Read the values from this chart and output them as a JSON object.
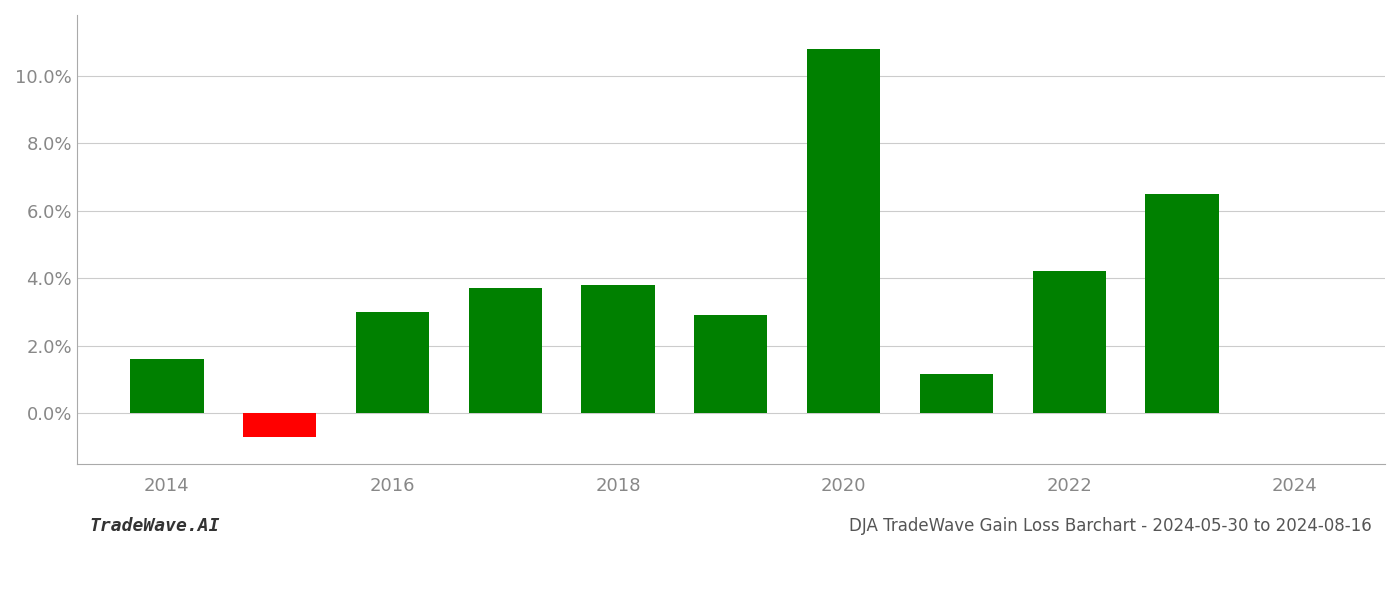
{
  "years": [
    2014,
    2015,
    2016,
    2017,
    2018,
    2019,
    2020,
    2021,
    2022,
    2023
  ],
  "values": [
    1.6,
    -0.7,
    3.0,
    3.7,
    3.8,
    2.9,
    10.8,
    1.15,
    4.2,
    6.5
  ],
  "bar_colors": [
    "#008000",
    "#ff0000",
    "#008000",
    "#008000",
    "#008000",
    "#008000",
    "#008000",
    "#008000",
    "#008000",
    "#008000"
  ],
  "title": "DJA TradeWave Gain Loss Barchart - 2024-05-30 to 2024-08-16",
  "watermark": "TradeWave.AI",
  "ylim": [
    -1.5,
    11.8
  ],
  "yticks": [
    0.0,
    2.0,
    4.0,
    6.0,
    8.0,
    10.0
  ],
  "background_color": "#ffffff",
  "grid_color": "#cccccc",
  "title_fontsize": 12,
  "watermark_fontsize": 13,
  "tick_fontsize": 13,
  "bar_width": 0.65
}
